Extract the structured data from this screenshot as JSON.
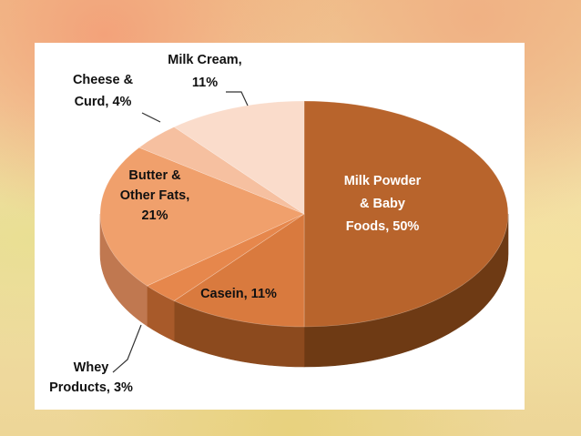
{
  "chart_data": {
    "type": "pie",
    "style": "3d",
    "title": "",
    "slices": [
      {
        "label_lines": [
          "Milk Powder",
          "& Baby",
          "Foods, 50%"
        ],
        "category": "Milk Powder & Baby Foods",
        "value": 50,
        "color": "#b8642c",
        "side_color": "#6e3a14",
        "label_color": "#ffffff"
      },
      {
        "label_lines": [
          "Casein, 11%"
        ],
        "category": "Casein",
        "value": 11,
        "color": "#d97a3e",
        "side_color": "#8c4a1e",
        "label_color": "#111111"
      },
      {
        "label_lines": [
          "Whey",
          "Products, 3%"
        ],
        "category": "Whey Products",
        "value": 3,
        "color": "#e6874c",
        "side_color": "#a85a2a",
        "label_color": "#111111"
      },
      {
        "label_lines": [
          "Butter &",
          "Other Fats,",
          "21%"
        ],
        "category": "Butter & Other Fats",
        "value": 21,
        "color": "#f0a06c",
        "side_color": "#c07850",
        "label_color": "#111111"
      },
      {
        "label_lines": [
          "Cheese &",
          "Curd, 4%"
        ],
        "category": "Cheese & Curd",
        "value": 4,
        "color": "#f6c0a0",
        "side_color": "#d49c80",
        "label_color": "#111111"
      },
      {
        "label_lines": [
          "Milk Cream,",
          "11%"
        ],
        "category": "Milk Cream",
        "value": 11,
        "color": "#fadccb",
        "side_color": "#dcb8a4",
        "label_color": "#111111"
      }
    ]
  }
}
